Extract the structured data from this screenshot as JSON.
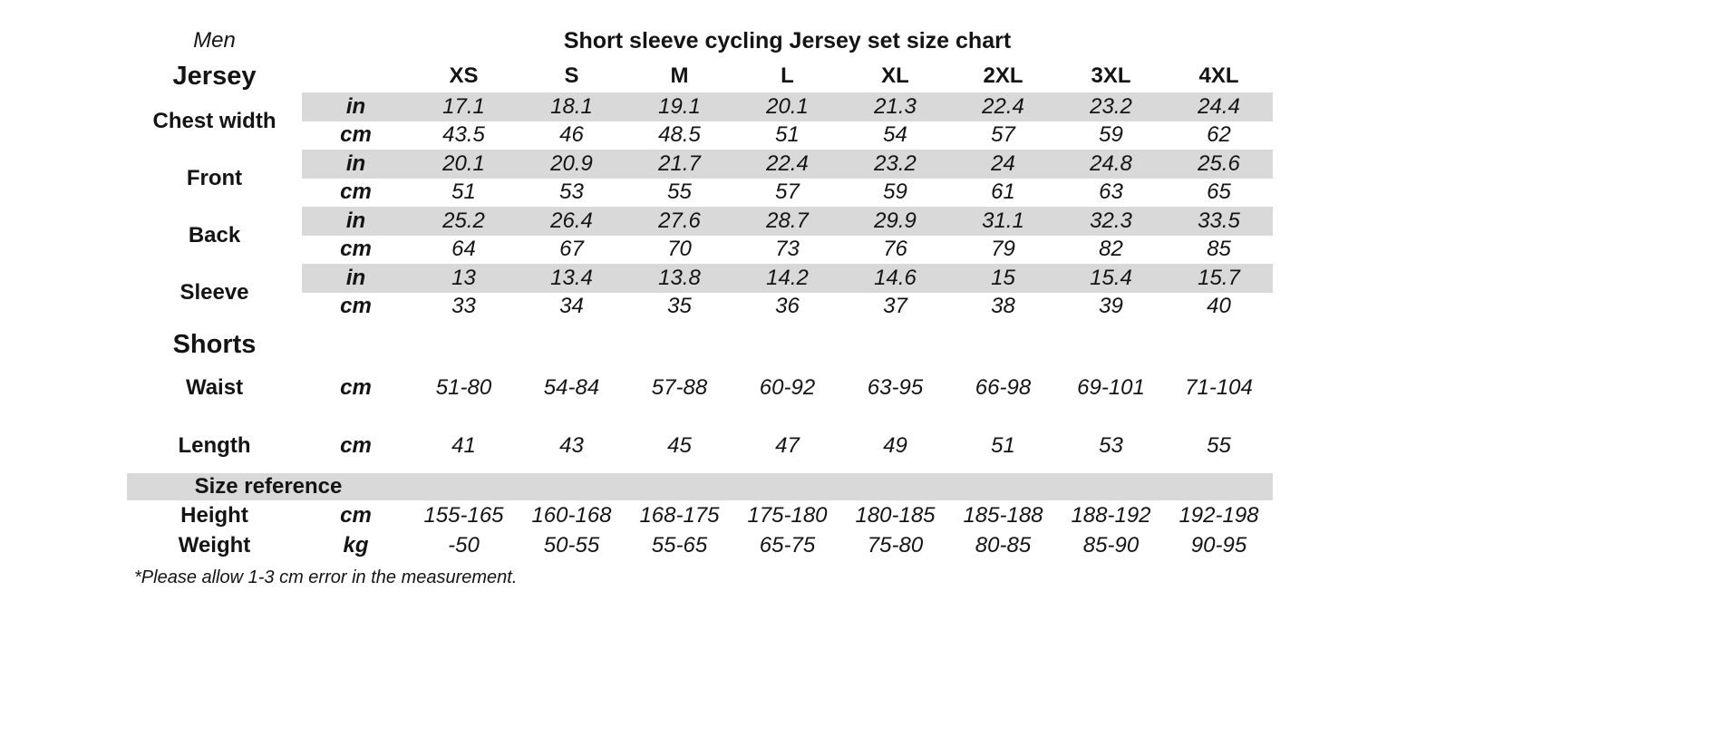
{
  "chart_data": {
    "type": "table",
    "gender_label": "Men",
    "title": "Short sleeve cycling Jersey set size chart",
    "footnote": "*Please allow 1-3 cm error in the measurement.",
    "size_columns": [
      "XS",
      "S",
      "M",
      "L",
      "XL",
      "2XL",
      "3XL",
      "4XL"
    ],
    "units": {
      "inches": "in",
      "centimeters": "cm",
      "kilograms": "kg"
    },
    "jersey": {
      "section_label": "Jersey",
      "chest": {
        "label": "Chest width",
        "in": [
          "17.1",
          "18.1",
          "19.1",
          "20.1",
          "21.3",
          "22.4",
          "23.2",
          "24.4"
        ],
        "cm": [
          "43.5",
          "46",
          "48.5",
          "51",
          "54",
          "57",
          "59",
          "62"
        ]
      },
      "front": {
        "label": "Front",
        "in": [
          "20.1",
          "20.9",
          "21.7",
          "22.4",
          "23.2",
          "24",
          "24.8",
          "25.6"
        ],
        "cm": [
          "51",
          "53",
          "55",
          "57",
          "59",
          "61",
          "63",
          "65"
        ]
      },
      "back": {
        "label": "Back",
        "in": [
          "25.2",
          "26.4",
          "27.6",
          "28.7",
          "29.9",
          "31.1",
          "32.3",
          "33.5"
        ],
        "cm": [
          "64",
          "67",
          "70",
          "73",
          "76",
          "79",
          "82",
          "85"
        ]
      },
      "sleeve": {
        "label": "Sleeve",
        "in": [
          "13",
          "13.4",
          "13.8",
          "14.2",
          "14.6",
          "15",
          "15.4",
          "15.7"
        ],
        "cm": [
          "33",
          "34",
          "35",
          "36",
          "37",
          "38",
          "39",
          "40"
        ]
      }
    },
    "shorts": {
      "section_label": "Shorts",
      "waist": {
        "label": "Waist",
        "unit": "cm",
        "values": [
          "51-80",
          "54-84",
          "57-88",
          "60-92",
          "63-95",
          "66-98",
          "69-101",
          "71-104"
        ]
      },
      "length": {
        "label": "Length",
        "unit": "cm",
        "values": [
          "41",
          "43",
          "45",
          "47",
          "49",
          "51",
          "53",
          "55"
        ]
      }
    },
    "size_reference": {
      "section_label": "Size reference",
      "height": {
        "label": "Height",
        "unit": "cm",
        "values": [
          "155-165",
          "160-168",
          "168-175",
          "175-180",
          "180-185",
          "185-188",
          "188-192",
          "192-198"
        ]
      },
      "weight": {
        "label": "Weight",
        "unit": "kg",
        "values": [
          "-50",
          "50-55",
          "55-65",
          "65-75",
          "75-80",
          "80-85",
          "85-90",
          "90-95"
        ]
      }
    },
    "style": {
      "band_color": "#d9d9d9",
      "text_color": "#141414",
      "background_color": "#ffffff"
    }
  }
}
